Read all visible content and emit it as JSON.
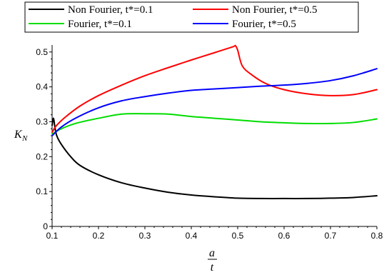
{
  "chart_data": {
    "type": "line",
    "title": "",
    "xlabel_numerator": "a",
    "xlabel_denominator": "t",
    "ylabel_main": "K",
    "ylabel_sub": "N",
    "xlim": [
      0.1,
      0.8
    ],
    "ylim": [
      0,
      0.52
    ],
    "x_ticks": [
      0.1,
      0.2,
      0.3,
      0.4,
      0.5,
      0.6,
      0.7,
      0.8
    ],
    "x_tick_labels": [
      "0.1",
      "0.2",
      "0.3",
      "0.4",
      "0.5",
      "0.6",
      "0.7",
      "0.8"
    ],
    "y_ticks": [
      0,
      0.1,
      0.2,
      0.3,
      0.4,
      0.5
    ],
    "y_tick_labels": [
      "0",
      "0.1",
      "0.2",
      "0.3",
      "0.4",
      "0.5"
    ],
    "grid": false,
    "legend_position": "top",
    "series": [
      {
        "name": "Non Fourier, t*=0.1",
        "color": "#000000",
        "points": [
          [
            0.1,
            0.29
          ],
          [
            0.103,
            0.31
          ],
          [
            0.106,
            0.285
          ],
          [
            0.11,
            0.26
          ],
          [
            0.12,
            0.235
          ],
          [
            0.14,
            0.2
          ],
          [
            0.16,
            0.175
          ],
          [
            0.2,
            0.148
          ],
          [
            0.25,
            0.125
          ],
          [
            0.3,
            0.11
          ],
          [
            0.35,
            0.098
          ],
          [
            0.4,
            0.09
          ],
          [
            0.45,
            0.085
          ],
          [
            0.5,
            0.081
          ],
          [
            0.55,
            0.08
          ],
          [
            0.6,
            0.08
          ],
          [
            0.65,
            0.08
          ],
          [
            0.7,
            0.081
          ],
          [
            0.75,
            0.083
          ],
          [
            0.8,
            0.088
          ]
        ]
      },
      {
        "name": "Non Fourier, t*=0.5",
        "color": "#ff0000",
        "points": [
          [
            0.1,
            0.27
          ],
          [
            0.11,
            0.29
          ],
          [
            0.13,
            0.315
          ],
          [
            0.16,
            0.345
          ],
          [
            0.2,
            0.375
          ],
          [
            0.25,
            0.405
          ],
          [
            0.3,
            0.432
          ],
          [
            0.35,
            0.455
          ],
          [
            0.4,
            0.477
          ],
          [
            0.45,
            0.498
          ],
          [
            0.49,
            0.515
          ],
          [
            0.495,
            0.518
          ],
          [
            0.5,
            0.505
          ],
          [
            0.51,
            0.46
          ],
          [
            0.53,
            0.435
          ],
          [
            0.56,
            0.41
          ],
          [
            0.6,
            0.392
          ],
          [
            0.65,
            0.38
          ],
          [
            0.7,
            0.375
          ],
          [
            0.75,
            0.378
          ],
          [
            0.8,
            0.392
          ]
        ]
      },
      {
        "name": "Fourier, t*=0.1",
        "color": "#00dd00",
        "points": [
          [
            0.1,
            0.265
          ],
          [
            0.12,
            0.28
          ],
          [
            0.15,
            0.295
          ],
          [
            0.2,
            0.31
          ],
          [
            0.25,
            0.322
          ],
          [
            0.3,
            0.323
          ],
          [
            0.35,
            0.322
          ],
          [
            0.4,
            0.315
          ],
          [
            0.45,
            0.31
          ],
          [
            0.5,
            0.305
          ],
          [
            0.55,
            0.3
          ],
          [
            0.6,
            0.297
          ],
          [
            0.65,
            0.295
          ],
          [
            0.7,
            0.295
          ],
          [
            0.75,
            0.298
          ],
          [
            0.8,
            0.308
          ]
        ]
      },
      {
        "name": "Fourier, t*=0.5",
        "color": "#0000ff",
        "points": [
          [
            0.1,
            0.26
          ],
          [
            0.12,
            0.285
          ],
          [
            0.15,
            0.31
          ],
          [
            0.2,
            0.34
          ],
          [
            0.25,
            0.36
          ],
          [
            0.3,
            0.372
          ],
          [
            0.35,
            0.382
          ],
          [
            0.4,
            0.39
          ],
          [
            0.45,
            0.394
          ],
          [
            0.5,
            0.398
          ],
          [
            0.55,
            0.402
          ],
          [
            0.6,
            0.405
          ],
          [
            0.65,
            0.41
          ],
          [
            0.7,
            0.418
          ],
          [
            0.75,
            0.432
          ],
          [
            0.8,
            0.452
          ]
        ]
      }
    ]
  }
}
